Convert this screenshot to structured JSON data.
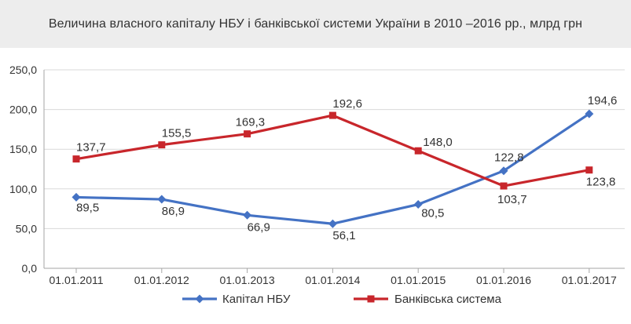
{
  "header": {
    "title": "Величина власного капіталу НБУ і банківської системи України в 2010 –2016 рр., млрд грн"
  },
  "chart_data": {
    "type": "line",
    "title": "Величина власного капіталу НБУ і банківської системи України в 2010 –2016 рр., млрд грн",
    "categories": [
      "01.01.2011",
      "01.01.2012",
      "01.01.2013",
      "01.01.2014",
      "01.01.2015",
      "01.01.2016",
      "01.01.2017"
    ],
    "ylim": [
      0,
      250
    ],
    "yticks": [
      "0,0",
      "50,0",
      "100,0",
      "150,0",
      "200,0",
      "250,0"
    ],
    "ytick_values": [
      0,
      50,
      100,
      150,
      200,
      250
    ],
    "grid": true,
    "legend_position": "bottom",
    "series": [
      {
        "name": "Капітал НБУ",
        "color": "#4472c4",
        "marker": "diamond",
        "values": [
          89.5,
          86.9,
          66.9,
          56.1,
          80.5,
          122.8,
          194.6
        ],
        "labels": [
          "89,5",
          "86,9",
          "66,9",
          "56,1",
          "80,5",
          "122,8",
          "194,6"
        ]
      },
      {
        "name": "Банківська система",
        "color": "#c8262b",
        "marker": "square",
        "values": [
          137.7,
          155.5,
          169.3,
          192.6,
          148.0,
          103.7,
          123.8
        ],
        "labels": [
          "137,7",
          "155,5",
          "169,3",
          "192,6",
          "148,0",
          "103,7",
          "123,8"
        ]
      }
    ]
  }
}
